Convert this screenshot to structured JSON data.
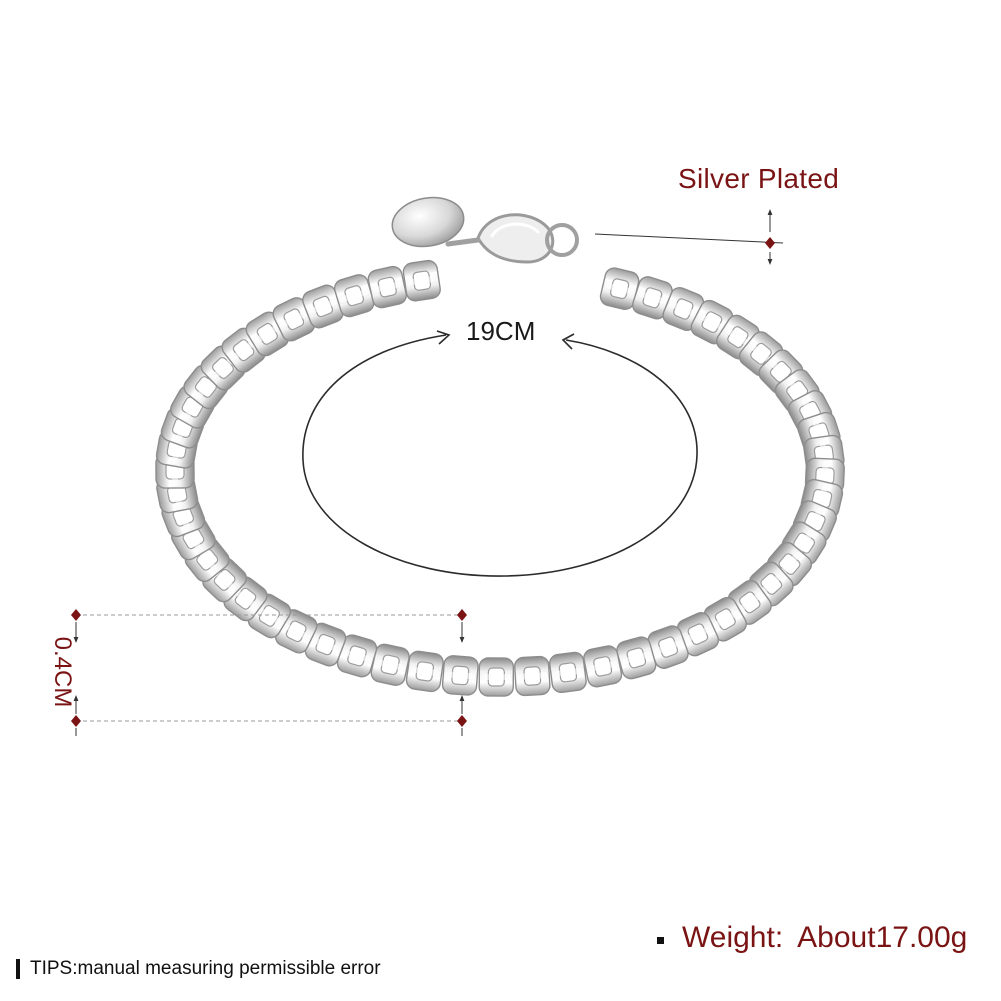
{
  "annotations": {
    "material": "Silver Plated",
    "length": "19CM",
    "width": "0.4CM"
  },
  "weight": {
    "label": "Weight:",
    "value": "About17.00g"
  },
  "tips": {
    "text": "TIPS:manual measuring permissible error"
  },
  "colors": {
    "accent": "#7a1414",
    "text": "#1a1a1a",
    "silver": "#c9c9c9",
    "background": "#ffffff"
  },
  "icons": {
    "marker": "diamond-marker-icon",
    "arrow": "double-arrow-icon",
    "bullet": "square-bullet-icon"
  }
}
